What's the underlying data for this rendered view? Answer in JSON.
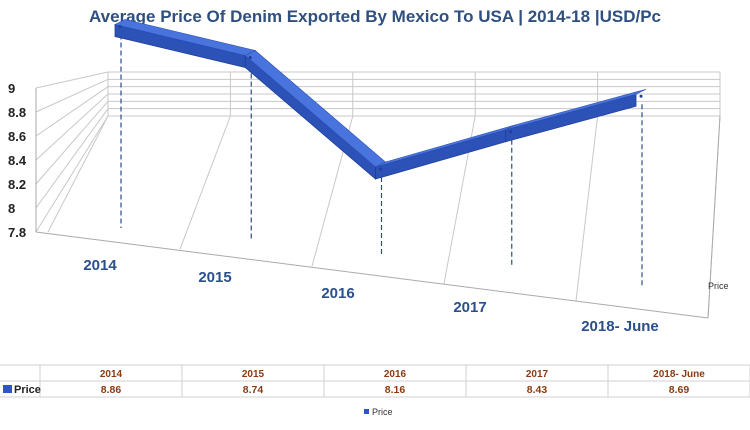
{
  "chart_data": {
    "type": "line",
    "title": "Average Price Of Denim Exported By Mexico To USA | 2014-18 |USD/Pc",
    "categories": [
      "2014",
      "2015",
      "2016",
      "2017",
      "2018- June"
    ],
    "series": [
      {
        "name": "Price",
        "values": [
          8.86,
          8.74,
          8.16,
          8.43,
          8.69
        ],
        "color": "#2f55c4"
      }
    ],
    "ylim": [
      7.8,
      9
    ],
    "yticks": [
      "7.8",
      "8",
      "8.2",
      "8.4",
      "8.6",
      "8.8",
      "9"
    ],
    "depth_axis_label": "Price",
    "grid": true,
    "style": "3d-line",
    "data_table": true,
    "legend": {
      "position": "bottom",
      "label": "Price"
    }
  }
}
